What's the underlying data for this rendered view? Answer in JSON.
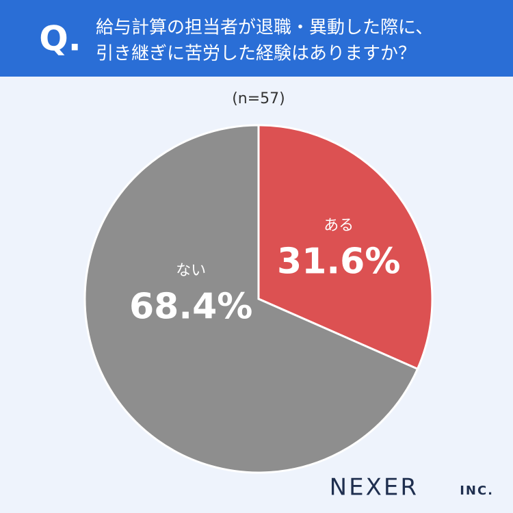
{
  "chart_data": {
    "type": "pie",
    "question_mark": "Q.",
    "title_lines": [
      "給与計算の担当者が退職・異動した際に、",
      "引き継ぎに苦労した経験はありますか？"
    ],
    "subtitle": "(n=57)",
    "categories": [
      "ある",
      "ない"
    ],
    "values": [
      31.6,
      68.4
    ],
    "value_labels": [
      "31.6%",
      "68.4%"
    ],
    "colors": [
      "#dc5152",
      "#8e8e8e"
    ]
  },
  "brand": {
    "name": "NEXER",
    "suffix": "INC."
  }
}
